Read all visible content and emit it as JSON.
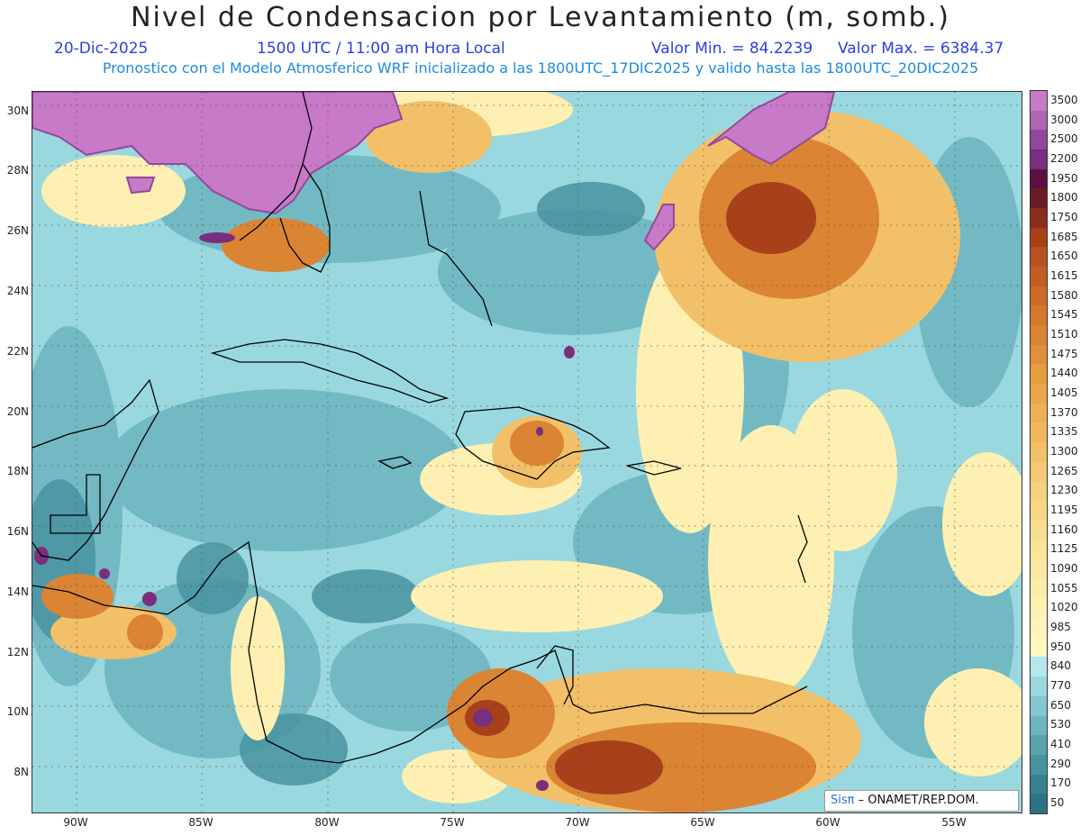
{
  "header": {
    "title": "Nivel de Condensacion por Levantamiento (m, somb.)",
    "date": "20-Dic-2025",
    "time": "1500 UTC / 11:00 am Hora Local",
    "min": "Valor Min. = 84.2239",
    "max": "Valor Max. = 6384.37",
    "description": "Pronostico con el Modelo Atmosferico WRF inicializado a las 1800UTC_17DIC2025 y valido hasta las  1800UTC_20DIC2025"
  },
  "axes": {
    "y_labels": [
      "30N",
      "28N",
      "26N",
      "24N",
      "22N",
      "20N",
      "18N",
      "16N",
      "14N",
      "12N",
      "10N",
      "8N"
    ],
    "x_labels": [
      "90W",
      "85W",
      "80W",
      "75W",
      "70W",
      "65W",
      "60W",
      "55W"
    ]
  },
  "colorbar": {
    "labels": [
      "3500",
      "3000",
      "2500",
      "2200",
      "1950",
      "1800",
      "1750",
      "1685",
      "1650",
      "1615",
      "1580",
      "1545",
      "1510",
      "1475",
      "1440",
      "1405",
      "1370",
      "1335",
      "1300",
      "1265",
      "1230",
      "1195",
      "1160",
      "1125",
      "1090",
      "1055",
      "1020",
      "985",
      "950",
      "840",
      "770",
      "650",
      "530",
      "410",
      "290",
      "170",
      "50"
    ],
    "colors": [
      "#c77ac7",
      "#b064b4",
      "#94489c",
      "#7a2e7e",
      "#5a1040",
      "#6b1c24",
      "#8a2e1c",
      "#a8401a",
      "#b85020",
      "#c25e24",
      "#cc6a28",
      "#d4782e",
      "#da8434",
      "#e0903a",
      "#e69c40",
      "#eaa64a",
      "#eeb054",
      "#f0b85e",
      "#f2c068",
      "#f4c872",
      "#f6d07c",
      "#f8d886",
      "#f9de90",
      "#fae49a",
      "#fbe8a2",
      "#fcecaa",
      "#fdf0b2",
      "#fef4ba",
      "#fff6c0",
      "#b5e8ec",
      "#9ad8df",
      "#84c7d0",
      "#6fb6c0",
      "#5aa4b0",
      "#4893a0",
      "#388392",
      "#2c7484"
    ]
  },
  "logo": {
    "sis": "Sisπ",
    "text": "– ONAMET/REP.DOM."
  },
  "colors": {
    "title": "#222222",
    "subtitle": "#2c3fe0",
    "description": "#1d8be0"
  }
}
